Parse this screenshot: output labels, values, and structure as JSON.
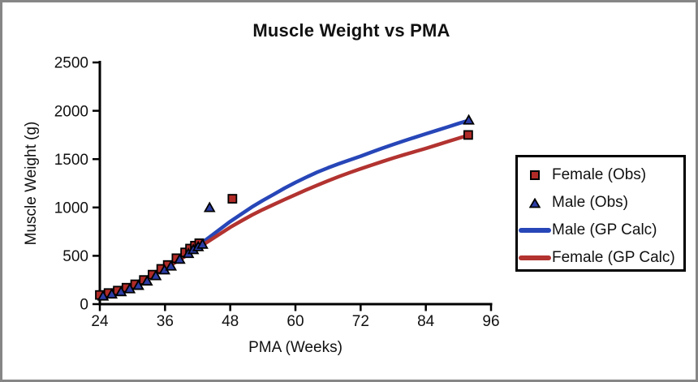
{
  "frame": {
    "border_color": "#868686",
    "background": "#ffffff"
  },
  "chart_data": {
    "type": "scatter",
    "title": "Muscle Weight vs PMA",
    "xlabel": "PMA (Weeks)",
    "ylabel": "Muscle Weight (g)",
    "xlim": [
      24,
      96
    ],
    "ylim": [
      0,
      2500
    ],
    "xticks": [
      24,
      36,
      48,
      60,
      72,
      84,
      96
    ],
    "yticks": [
      0,
      500,
      1000,
      1500,
      2000,
      2500
    ],
    "grid": false,
    "legend_position": "right",
    "axis_color": "#000000",
    "series": [
      {
        "name": "Female (Obs)",
        "type": "scatter",
        "marker": "square",
        "color": "#b02b27",
        "points": [
          [
            24.0,
            95
          ],
          [
            25.6,
            115
          ],
          [
            27.3,
            140
          ],
          [
            28.9,
            170
          ],
          [
            30.5,
            205
          ],
          [
            32.1,
            250
          ],
          [
            33.7,
            305
          ],
          [
            35.3,
            365
          ],
          [
            36.5,
            405
          ],
          [
            38.1,
            475
          ],
          [
            39.7,
            535
          ],
          [
            40.6,
            575
          ],
          [
            41.5,
            605
          ],
          [
            42.3,
            630
          ],
          [
            48.4,
            1090
          ],
          [
            91.8,
            1750
          ]
        ]
      },
      {
        "name": "Male (Obs)",
        "type": "scatter",
        "marker": "triangle",
        "color": "#2c3da6",
        "points": [
          [
            24.6,
            85
          ],
          [
            26.2,
            105
          ],
          [
            27.9,
            130
          ],
          [
            29.5,
            160
          ],
          [
            31.1,
            195
          ],
          [
            32.7,
            240
          ],
          [
            34.3,
            295
          ],
          [
            35.9,
            355
          ],
          [
            37.1,
            395
          ],
          [
            38.7,
            465
          ],
          [
            40.3,
            525
          ],
          [
            41.2,
            565
          ],
          [
            42.1,
            595
          ],
          [
            42.9,
            620
          ],
          [
            44.2,
            1000
          ],
          [
            91.9,
            1905
          ]
        ]
      },
      {
        "name": "Male (GP Calc)",
        "type": "line",
        "color": "#2746b8",
        "points": [
          [
            24,
            80
          ],
          [
            26,
            115
          ],
          [
            28,
            160
          ],
          [
            30,
            205
          ],
          [
            32,
            255
          ],
          [
            34,
            310
          ],
          [
            36,
            375
          ],
          [
            38,
            445
          ],
          [
            40,
            520
          ],
          [
            42,
            600
          ],
          [
            44,
            685
          ],
          [
            46,
            770
          ],
          [
            48,
            855
          ],
          [
            50,
            930
          ],
          [
            52,
            1005
          ],
          [
            54,
            1072
          ],
          [
            56,
            1135
          ],
          [
            58,
            1200
          ],
          [
            60,
            1258
          ],
          [
            62,
            1313
          ],
          [
            64,
            1365
          ],
          [
            66,
            1410
          ],
          [
            68,
            1452
          ],
          [
            70,
            1492
          ],
          [
            72,
            1530
          ],
          [
            74,
            1572
          ],
          [
            76,
            1613
          ],
          [
            78,
            1652
          ],
          [
            80,
            1690
          ],
          [
            82,
            1726
          ],
          [
            84,
            1762
          ],
          [
            86,
            1797
          ],
          [
            88,
            1832
          ],
          [
            90,
            1868
          ],
          [
            92,
            1902
          ]
        ]
      },
      {
        "name": "Female (GP Calc)",
        "type": "line",
        "color": "#b23330",
        "points": [
          [
            24,
            80
          ],
          [
            26,
            115
          ],
          [
            28,
            158
          ],
          [
            30,
            202
          ],
          [
            32,
            250
          ],
          [
            34,
            305
          ],
          [
            36,
            368
          ],
          [
            38,
            435
          ],
          [
            40,
            505
          ],
          [
            42,
            578
          ],
          [
            44,
            650
          ],
          [
            46,
            722
          ],
          [
            48,
            795
          ],
          [
            50,
            860
          ],
          [
            52,
            922
          ],
          [
            54,
            978
          ],
          [
            56,
            1030
          ],
          [
            58,
            1082
          ],
          [
            60,
            1132
          ],
          [
            62,
            1182
          ],
          [
            64,
            1230
          ],
          [
            66,
            1276
          ],
          [
            68,
            1320
          ],
          [
            70,
            1361
          ],
          [
            72,
            1400
          ],
          [
            74,
            1438
          ],
          [
            76,
            1475
          ],
          [
            78,
            1511
          ],
          [
            80,
            1545
          ],
          [
            82,
            1578
          ],
          [
            84,
            1611
          ],
          [
            86,
            1646
          ],
          [
            88,
            1681
          ],
          [
            90,
            1716
          ],
          [
            92,
            1750
          ]
        ]
      }
    ]
  },
  "legend": {
    "items": [
      {
        "label": "Female (Obs)",
        "swatch": "square-marker",
        "color": "#b02b27"
      },
      {
        "label": "Male (Obs)",
        "swatch": "triangle-marker",
        "color": "#2c3da6"
      },
      {
        "label": "Male (GP Calc)",
        "swatch": "line",
        "color": "#2746b8"
      },
      {
        "label": "Female (GP Calc)",
        "swatch": "line",
        "color": "#b23330"
      }
    ]
  }
}
